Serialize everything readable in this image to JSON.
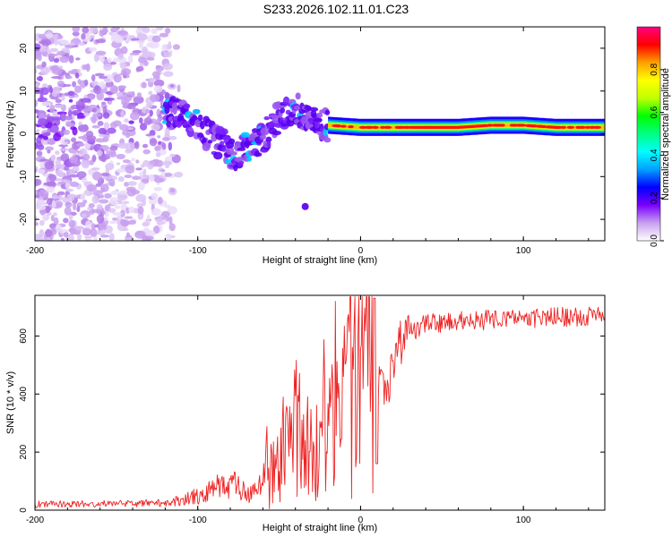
{
  "title": "S233.2026.102.11.01.C23",
  "chart_data": [
    {
      "type": "heatmap",
      "xlabel": "Height of straight line (km)",
      "ylabel": "Frequency (Hz)",
      "xlim": [
        -200,
        150
      ],
      "ylim": [
        -25,
        25
      ],
      "x_ticks": [
        -200,
        -100,
        0,
        100
      ],
      "y_ticks": [
        -20,
        -10,
        0,
        10,
        20
      ],
      "colorbar": {
        "label": "Normalized spectral amplitude",
        "range": [
          0,
          1
        ],
        "ticks": [
          0.0,
          0.2,
          0.4,
          0.6,
          0.8
        ],
        "colors": [
          "#ffffff",
          "#c8a0f0",
          "#7a00ff",
          "#0000ff",
          "#00a0ff",
          "#00ffff",
          "#00ff80",
          "#00ff00",
          "#c0ff00",
          "#ffff00",
          "#ffa000",
          "#ff0000",
          "#ff0080"
        ]
      },
      "ridge": {
        "x": [
          -120,
          -110,
          -100,
          -90,
          -80,
          -75,
          -70,
          -60,
          -50,
          -40,
          -30,
          -20,
          0,
          20,
          40,
          60,
          80,
          100,
          120,
          150
        ],
        "y": [
          6,
          4,
          2,
          -1,
          -4,
          -6,
          -3,
          -1,
          4,
          6,
          3,
          2,
          1.5,
          1.5,
          1.5,
          1.5,
          2,
          2,
          1.5,
          1.5
        ]
      },
      "noise_region_x": [
        -200,
        -115
      ]
    },
    {
      "type": "line",
      "xlabel": "Height of straight line (km)",
      "ylabel": "SNR (10 * v/v)",
      "xlim": [
        -200,
        150
      ],
      "ylim": [
        0,
        740
      ],
      "x_ticks": [
        -200,
        -100,
        0,
        100
      ],
      "y_ticks": [
        0,
        200,
        400,
        600
      ],
      "series": [
        {
          "name": "SNR",
          "color": "#ee2222",
          "x": [
            -200,
            -150,
            -120,
            -110,
            -100,
            -90,
            -80,
            -70,
            -60,
            -50,
            -40,
            -30,
            -20,
            -10,
            0,
            5,
            10,
            15,
            20,
            25,
            30,
            40,
            60,
            80,
            100,
            120,
            150
          ],
          "y": [
            20,
            22,
            25,
            35,
            50,
            70,
            100,
            55,
            80,
            150,
            240,
            190,
            260,
            340,
            420,
            430,
            450,
            400,
            500,
            580,
            610,
            640,
            650,
            655,
            660,
            665,
            670
          ]
        }
      ]
    }
  ]
}
